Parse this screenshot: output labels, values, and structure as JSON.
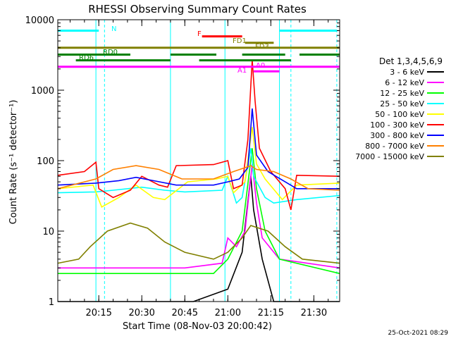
{
  "chart_data": {
    "type": "line",
    "title": "RHESSI Observing Summary Count Rates",
    "xlabel": "Start Time (08-Nov-03 20:00:42)",
    "ylabel": "Count Rate (s⁻¹ detector⁻¹)",
    "y_scale": "log",
    "ylim": [
      1,
      10000
    ],
    "xlim": [
      "20:00:42",
      "21:39:00"
    ],
    "x_ticks": [
      "20:15",
      "20:30",
      "20:45",
      "21:00",
      "21:15",
      "21:30"
    ],
    "y_ticks": [
      "1",
      "10",
      "100",
      "1000",
      "10000"
    ],
    "legend_title": "Det 1,3,4,5,6,9",
    "legend_position": "right",
    "timestamp": "25-Oct-2021 08:29",
    "series": [
      {
        "name": "3 - 6 keV",
        "color": "#000000",
        "points": [
          [
            "20:00:42",
            1
          ],
          [
            "20:30:00",
            1
          ],
          [
            "20:48:00",
            1
          ],
          [
            "21:00:00",
            1.5
          ],
          [
            "21:05:00",
            5
          ],
          [
            "21:08:00",
            60
          ],
          [
            "21:09:00",
            20
          ],
          [
            "21:12:00",
            4
          ],
          [
            "21:16:00",
            1
          ],
          [
            "21:39:00",
            1
          ]
        ]
      },
      {
        "name": "6 - 12 keV",
        "color": "#ff00ff",
        "points": [
          [
            "20:00:42",
            3
          ],
          [
            "20:30:00",
            3
          ],
          [
            "20:45:00",
            3
          ],
          [
            "20:58:00",
            3.5
          ],
          [
            "21:00:00",
            8
          ],
          [
            "21:03:00",
            6
          ],
          [
            "21:06:00",
            10
          ],
          [
            "21:08:30",
            90
          ],
          [
            "21:10:00",
            25
          ],
          [
            "21:12:00",
            8
          ],
          [
            "21:18:00",
            4
          ],
          [
            "21:39:00",
            3
          ]
        ]
      },
      {
        "name": "12 - 25 keV",
        "color": "#00ff00",
        "points": [
          [
            "20:00:42",
            2.5
          ],
          [
            "20:30:00",
            2.5
          ],
          [
            "20:55:00",
            2.5
          ],
          [
            "21:00:00",
            4
          ],
          [
            "21:05:00",
            10
          ],
          [
            "21:08:30",
            150
          ],
          [
            "21:10:00",
            40
          ],
          [
            "21:13:00",
            10
          ],
          [
            "21:18:00",
            4
          ],
          [
            "21:39:00",
            2.5
          ]
        ]
      },
      {
        "name": "25 - 50 keV",
        "color": "#00ffff",
        "points": [
          [
            "20:00:42",
            35
          ],
          [
            "20:14:00",
            36
          ],
          [
            "20:20:00",
            38
          ],
          [
            "20:30:00",
            42
          ],
          [
            "20:38:00",
            38
          ],
          [
            "20:45:00",
            36
          ],
          [
            "20:58:00",
            38
          ],
          [
            "21:00:00",
            60
          ],
          [
            "21:03:00",
            25
          ],
          [
            "21:05:00",
            30
          ],
          [
            "21:08:00",
            150
          ],
          [
            "21:09:00",
            60
          ],
          [
            "21:13:00",
            30
          ],
          [
            "21:16:00",
            25
          ],
          [
            "21:24:00",
            28
          ],
          [
            "21:39:00",
            32
          ]
        ]
      },
      {
        "name": "50 - 100 keV",
        "color": "#ffff00",
        "points": [
          [
            "20:00:42",
            40
          ],
          [
            "20:13:00",
            45
          ],
          [
            "20:16:00",
            22
          ],
          [
            "20:22:00",
            30
          ],
          [
            "20:28:00",
            45
          ],
          [
            "20:34:00",
            30
          ],
          [
            "20:38:00",
            28
          ],
          [
            "20:46:00",
            50
          ],
          [
            "20:56:00",
            55
          ],
          [
            "21:00:00",
            60
          ],
          [
            "21:02:00",
            35
          ],
          [
            "21:06:00",
            50
          ],
          [
            "21:08:30",
            300
          ],
          [
            "21:10:00",
            90
          ],
          [
            "21:13:00",
            55
          ],
          [
            "21:19:00",
            28
          ],
          [
            "21:24:00",
            45
          ],
          [
            "21:39:00",
            48
          ]
        ]
      },
      {
        "name": "100 - 300 keV",
        "color": "#ff0000",
        "points": [
          [
            "20:00:42",
            62
          ],
          [
            "20:10:00",
            70
          ],
          [
            "20:14:00",
            95
          ],
          [
            "20:15:00",
            40
          ],
          [
            "20:20:00",
            30
          ],
          [
            "20:26:00",
            38
          ],
          [
            "20:30:00",
            60
          ],
          [
            "20:36:00",
            45
          ],
          [
            "20:39:00",
            42
          ],
          [
            "20:42:00",
            85
          ],
          [
            "20:55:00",
            88
          ],
          [
            "21:00:00",
            100
          ],
          [
            "21:02:00",
            40
          ],
          [
            "21:05:00",
            45
          ],
          [
            "21:07:00",
            200
          ],
          [
            "21:08:30",
            2700
          ],
          [
            "21:09:30",
            700
          ],
          [
            "21:11:00",
            150
          ],
          [
            "21:15:00",
            70
          ],
          [
            "21:20:00",
            40
          ],
          [
            "21:22:00",
            20
          ],
          [
            "21:24:00",
            62
          ],
          [
            "21:39:00",
            60
          ]
        ]
      },
      {
        "name": "300 - 800 keV",
        "color": "#0000ff",
        "points": [
          [
            "20:00:42",
            45
          ],
          [
            "20:14:00",
            48
          ],
          [
            "20:22:00",
            52
          ],
          [
            "20:28:00",
            58
          ],
          [
            "20:34:00",
            52
          ],
          [
            "20:42:00",
            45
          ],
          [
            "20:55:00",
            45
          ],
          [
            "21:00:00",
            50
          ],
          [
            "21:04:00",
            55
          ],
          [
            "21:07:00",
            80
          ],
          [
            "21:08:30",
            550
          ],
          [
            "21:10:00",
            120
          ],
          [
            "21:14:00",
            70
          ],
          [
            "21:20:00",
            50
          ],
          [
            "21:24:00",
            40
          ],
          [
            "21:39:00",
            40
          ]
        ]
      },
      {
        "name": "800 - 7000 keV",
        "color": "#ff8000",
        "points": [
          [
            "20:00:42",
            40
          ],
          [
            "20:14:00",
            55
          ],
          [
            "20:20:00",
            75
          ],
          [
            "20:28:00",
            85
          ],
          [
            "20:36:00",
            75
          ],
          [
            "20:44:00",
            55
          ],
          [
            "20:55:00",
            55
          ],
          [
            "21:02:00",
            70
          ],
          [
            "21:08:00",
            85
          ],
          [
            "21:10:00",
            75
          ],
          [
            "21:16:00",
            70
          ],
          [
            "21:22:00",
            55
          ],
          [
            "21:28:00",
            40
          ],
          [
            "21:39:00",
            38
          ]
        ]
      },
      {
        "name": "7000 - 15000 keV",
        "color": "#808000",
        "points": [
          [
            "20:00:42",
            3.5
          ],
          [
            "20:08:00",
            4
          ],
          [
            "20:12:00",
            6
          ],
          [
            "20:18:00",
            10
          ],
          [
            "20:26:00",
            13
          ],
          [
            "20:32:00",
            11
          ],
          [
            "20:38:00",
            7
          ],
          [
            "20:45:00",
            5
          ],
          [
            "20:55:00",
            4
          ],
          [
            "21:00:00",
            5
          ],
          [
            "21:05:00",
            8
          ],
          [
            "21:08:00",
            12
          ],
          [
            "21:14:00",
            10
          ],
          [
            "21:20:00",
            6
          ],
          [
            "21:26:00",
            4
          ],
          [
            "21:39:00",
            3.5
          ]
        ]
      }
    ],
    "flags": [
      {
        "label": "N",
        "color": "#00ffff",
        "y": 7000,
        "segments": [
          [
            "20:00:42",
            "20:15:00"
          ],
          [
            "21:18:00",
            "21:38:00"
          ]
        ]
      },
      {
        "label": "F",
        "color": "#ff0000",
        "y": 5800,
        "segments": [
          [
            "20:51:00",
            "21:05:00"
          ]
        ]
      },
      {
        "label": "FD1",
        "color": "#808000",
        "y": 4700,
        "segments": [
          [
            "21:06:00",
            "21:16:00"
          ]
        ]
      },
      {
        "label": "FD3",
        "color": "#808000",
        "y": 4000,
        "segments": [
          [
            "20:00:42",
            "21:39:00"
          ]
        ]
      },
      {
        "label": "RD0",
        "color": "#008000",
        "y": 3200,
        "segments": [
          [
            "20:00:42",
            "20:26:00"
          ],
          [
            "20:40:00",
            "20:56:00"
          ],
          [
            "21:05:00",
            "21:20:00"
          ],
          [
            "21:25:00",
            "21:39:00"
          ]
        ]
      },
      {
        "label": "RD6",
        "color": "#008000",
        "y": 2650,
        "segments": [
          [
            "20:07:00",
            "20:40:00"
          ],
          [
            "20:50:00",
            "21:22:00"
          ]
        ]
      },
      {
        "label": "A0",
        "color": "#ff00ff",
        "y": 2150,
        "segments": [
          [
            "20:00:42",
            "21:39:00"
          ]
        ]
      },
      {
        "label": "A1",
        "color": "#ff00ff",
        "y": 1850,
        "segments": [
          [
            "21:09:00",
            "21:18:00"
          ]
        ]
      }
    ],
    "vertical_markers": [
      {
        "time": "20:00:42",
        "color": "#00ffff",
        "style": "solid"
      },
      {
        "time": "20:14:00",
        "color": "#00ffff",
        "style": "solid"
      },
      {
        "time": "20:17:00",
        "color": "#00ffff",
        "style": "dashed"
      },
      {
        "time": "20:40:00",
        "color": "#00ffff",
        "style": "solid"
      },
      {
        "time": "20:59:00",
        "color": "#00ffff",
        "style": "solid"
      },
      {
        "time": "21:18:00",
        "color": "#00ffff",
        "style": "solid"
      },
      {
        "time": "21:22:00",
        "color": "#00ffff",
        "style": "dashed"
      },
      {
        "time": "21:38:00",
        "color": "#00ffff",
        "style": "dashed"
      }
    ]
  }
}
